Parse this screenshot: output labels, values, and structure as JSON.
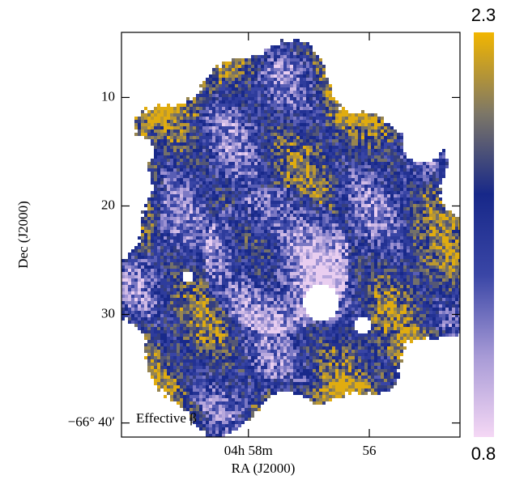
{
  "chart_data": {
    "type": "image-map",
    "xlabel": "RA (J2000)",
    "ylabel": "Dec (J2000)",
    "annotation": "Effective β",
    "xlim": [
      60.1,
      54.5
    ],
    "x_inverted": true,
    "xticks": [
      {
        "value": 58,
        "label": "04h 58m"
      },
      56
    ],
    "ylim": [
      4.0,
      41.3
    ],
    "y_inverted": true,
    "yticks": [
      10,
      20,
      30,
      {
        "value": 40,
        "label": "−66° 40′"
      }
    ],
    "colorbar": {
      "clim": [
        0.8,
        2.3
      ],
      "ticks": [
        0.8,
        2.3
      ],
      "colors": [
        "#f5d8f5",
        "#a79ad6",
        "#3a46a6",
        "#172889",
        "#7d7767",
        "#f2b600"
      ]
    }
  }
}
